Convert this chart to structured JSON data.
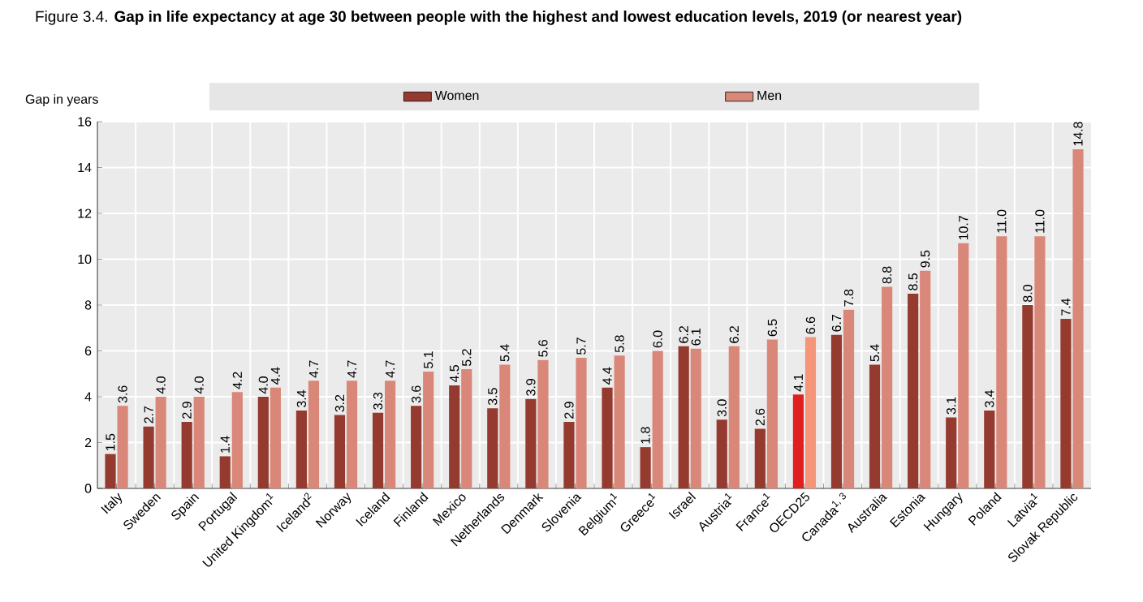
{
  "chart_data": {
    "type": "bar",
    "title": "Figure 3.4. **Gap in life expectancy at age 30 between people with the highest and lowest education levels, 2019 (or nearest year)**",
    "ylabel": "Gap in years",
    "categories": [
      "Italy",
      "Sweden",
      "Spain",
      "Portugal",
      "United Kingdom$^{1}$",
      "Iceland$^{2}$",
      "Norway",
      "Iceland",
      "Finland",
      "Mexico",
      "Netherlands",
      "Denmark",
      "Slovenia",
      "Belgium$^{1}$",
      "Greece$^{1}$",
      "Israel",
      "Austria$^{1}$",
      "France$^{1}$",
      "OECD25",
      "Canada$^{1, 3}$",
      "Australia",
      "Estonia",
      "Hungary",
      "Poland",
      "Latvia$^{1}$",
      "Slovak Republic"
    ],
    "series": [
      {
        "name": "Women",
        "color": "#953a2e",
        "colors": [
          "#953a2e",
          "#953a2e",
          "#953a2e",
          "#953a2e",
          "#953a2e",
          "#953a2e",
          "#953a2e",
          "#953a2e",
          "#953a2e",
          "#953a2e",
          "#953a2e",
          "#953a2e",
          "#953a2e",
          "#953a2e",
          "#953a2e",
          "#953a2e",
          "#953a2e",
          "#953a2e",
          "#e0201f",
          "#953a2e",
          "#953a2e",
          "#953a2e",
          "#953a2e",
          "#953a2e",
          "#953a2e",
          "#953a2e"
        ],
        "values": [
          1.5,
          2.7,
          2.9,
          1.4,
          4.0,
          3.4,
          3.2,
          3.3,
          3.6,
          4.5,
          3.5,
          3.9,
          2.9,
          4.4,
          1.8,
          6.2,
          3.0,
          2.6,
          4.1,
          6.7,
          5.4,
          8.5,
          3.1,
          3.4,
          8.0,
          7.4
        ],
        "value_labels": [
          "1.5",
          "2.7",
          "2.9",
          "1.4",
          "4.0",
          "3.4",
          "3.2",
          "3.3",
          "3.6",
          "4.5",
          "3.5",
          "3.9",
          "2.9",
          "4.4",
          "1.8",
          "6.2",
          "3.0",
          "2.6",
          "4.1",
          "6.7",
          "5.4",
          "8.5",
          "3.1",
          "3.4",
          "8.0",
          "7.4"
        ]
      },
      {
        "name": "Men",
        "color": "#d98778",
        "colors": [
          "#d98778",
          "#d98778",
          "#d98778",
          "#d98778",
          "#d98778",
          "#d98778",
          "#d98778",
          "#d98778",
          "#d98778",
          "#d98778",
          "#d98778",
          "#d98778",
          "#d98778",
          "#d98778",
          "#d98778",
          "#d98778",
          "#d98778",
          "#d98778",
          "#f4957a",
          "#d98778",
          "#d98778",
          "#d98778",
          "#d98778",
          "#d98778",
          "#d98778",
          "#d98778"
        ],
        "values": [
          3.6,
          4.0,
          4.0,
          4.2,
          4.4,
          4.7,
          4.7,
          4.7,
          5.1,
          5.2,
          5.4,
          5.6,
          5.7,
          5.8,
          6.0,
          6.1,
          6.2,
          6.5,
          6.6,
          7.8,
          8.8,
          9.5,
          10.7,
          11.0,
          11.0,
          14.8
        ],
        "value_labels": [
          "3.6",
          "4.0",
          "4.0",
          "4.2",
          "4.4",
          "4.7",
          "4.7",
          "4.7",
          "5.1",
          "5.2",
          "5.4",
          "5.6",
          "5.7",
          "5.8",
          "6.0",
          "6.1",
          "6.2",
          "6.5",
          "6.6",
          "7.8",
          "8.8",
          "9.5",
          "10.7",
          "11.0",
          "11.0",
          "14.8"
        ]
      }
    ],
    "ylim": [
      0,
      16
    ],
    "yticks": [
      0,
      2,
      4,
      6,
      8,
      10,
      12,
      14,
      16
    ],
    "grid": true,
    "legend": "top"
  }
}
